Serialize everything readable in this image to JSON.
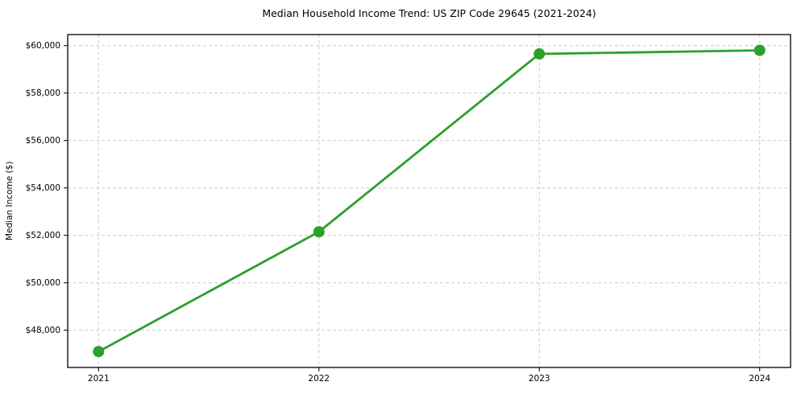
{
  "chart_data": {
    "type": "line",
    "title": "Median Household Income Trend: US ZIP Code 29645 (2021-2024)",
    "xlabel": "",
    "ylabel": "Median Income ($)",
    "x": [
      2021,
      2022,
      2023,
      2024
    ],
    "x_tick_labels": [
      "2021",
      "2022",
      "2023",
      "2024"
    ],
    "values": [
      47100,
      52150,
      59650,
      59800
    ],
    "y_ticks": [
      48000,
      50000,
      52000,
      54000,
      56000,
      58000,
      60000
    ],
    "y_tick_labels": [
      "$48,000",
      "$50,000",
      "$52,000",
      "$54,000",
      "$56,000",
      "$58,000",
      "$60,000"
    ],
    "xlim": [
      2020.86,
      2024.14
    ],
    "ylim": [
      46430,
      60465
    ],
    "grid": true,
    "legend_position": "none",
    "line_color": "#2ca02c",
    "grid_color": "#cccccc",
    "spine_color": "#000000",
    "tick_color": "#000000",
    "marker": "circle"
  }
}
